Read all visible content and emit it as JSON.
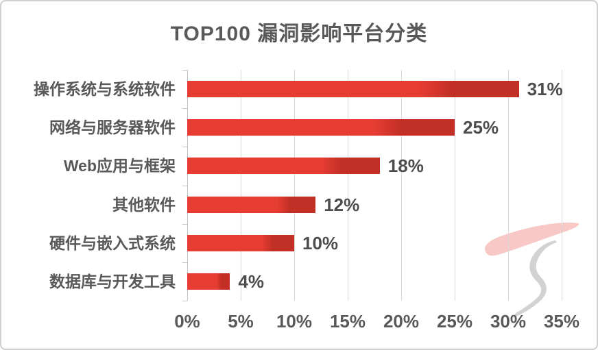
{
  "title": "TOP100 漏洞影响平台分类",
  "chart_data": {
    "type": "bar",
    "orientation": "horizontal",
    "title": "TOP100 漏洞影响平台分类",
    "categories": [
      "操作系统与系统软件",
      "网络与服务器软件",
      "Web应用与框架",
      "其他软件",
      "硬件与嵌入式系统",
      "数据库与开发工具"
    ],
    "values": [
      31,
      25,
      18,
      12,
      10,
      4
    ],
    "value_labels": [
      "31%",
      "25%",
      "18%",
      "12%",
      "10%",
      "4%"
    ],
    "x_ticks": [
      "0%",
      "5%",
      "10%",
      "15%",
      "20%",
      "25%",
      "30%",
      "35%"
    ],
    "x_tick_values": [
      0,
      5,
      10,
      15,
      20,
      25,
      30,
      35
    ],
    "xlim": [
      0,
      35
    ],
    "xlabel": "",
    "ylabel": "",
    "grid": "vertical-gridlines-on",
    "legend": "none",
    "data_labels_position": "outside-end"
  },
  "colors": {
    "bar_main": "#e63c32",
    "bar_cap": "#c12f27",
    "gridline": "#d9d9d9",
    "axis": "#c4c4c4",
    "title_text": "#595959",
    "category_text": "#595959",
    "value_text": "#4d4d4d",
    "tick_text": "#595959",
    "watermark_pink": "#f4b6b2",
    "watermark_gray": "#cdcdcd"
  },
  "watermark": {
    "name": "brush-stroke-logo"
  }
}
